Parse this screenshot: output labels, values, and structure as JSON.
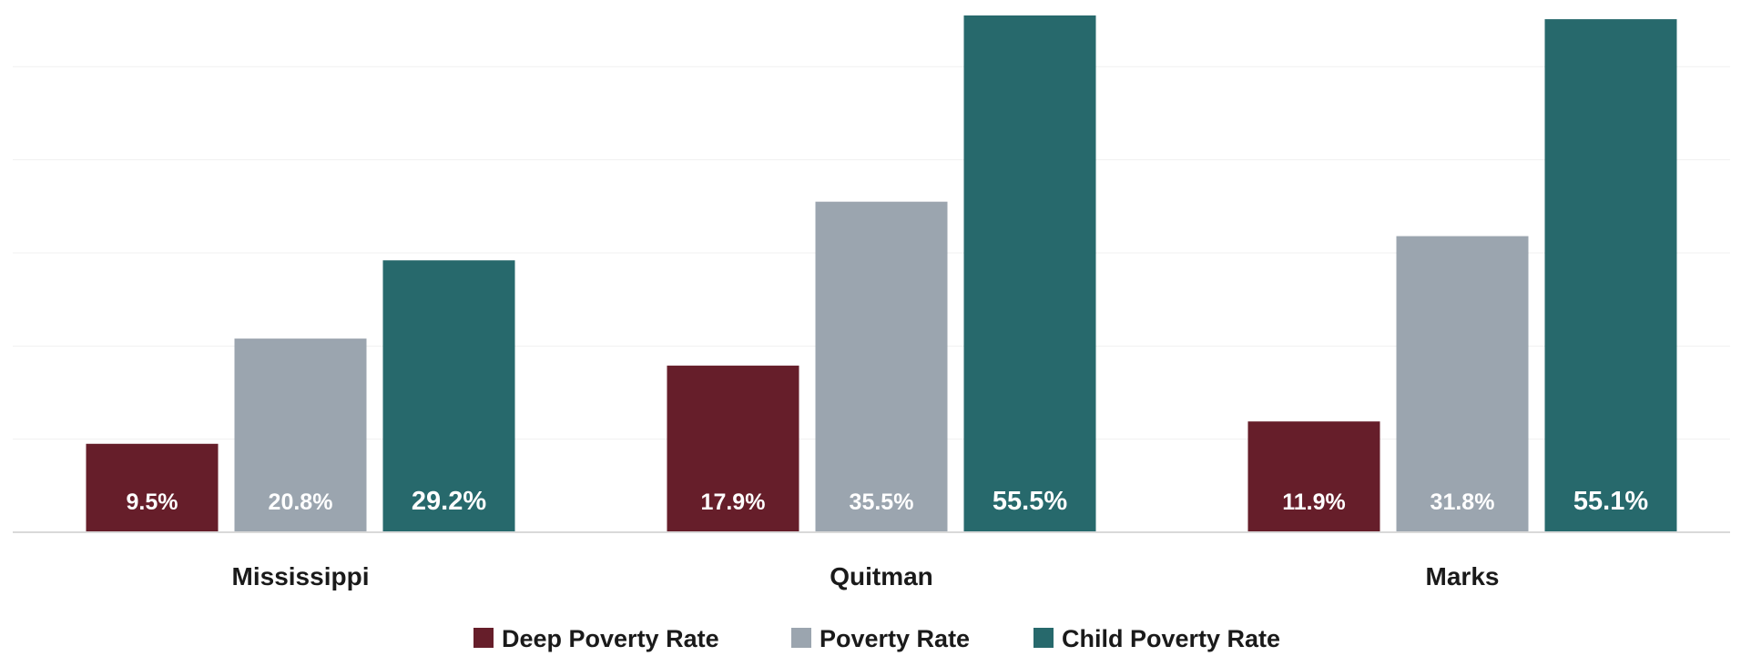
{
  "chart_data": {
    "type": "bar",
    "categories": [
      "Mississippi",
      "Quitman",
      "Marks"
    ],
    "series": [
      {
        "name": "Deep Poverty Rate",
        "values": [
          9.5,
          17.9,
          11.9
        ],
        "labels": [
          "9.5%",
          "17.9%",
          "11.9%"
        ],
        "color": "#661e2a"
      },
      {
        "name": "Poverty Rate",
        "values": [
          20.8,
          35.5,
          31.8
        ],
        "labels": [
          "20.8%",
          "35.5%",
          "31.8%"
        ],
        "color": "#9ba5af"
      },
      {
        "name": "Child Poverty Rate",
        "values": [
          29.2,
          55.5,
          55.1
        ],
        "labels": [
          "29.2%",
          "55.5%",
          "55.1%"
        ],
        "color": "#27696c"
      }
    ],
    "ylim": [
      0,
      55.5
    ],
    "grid": true,
    "legend_position": "bottom",
    "axis_color": "#d9d9d9",
    "grid_color": "#f0f0f0"
  }
}
